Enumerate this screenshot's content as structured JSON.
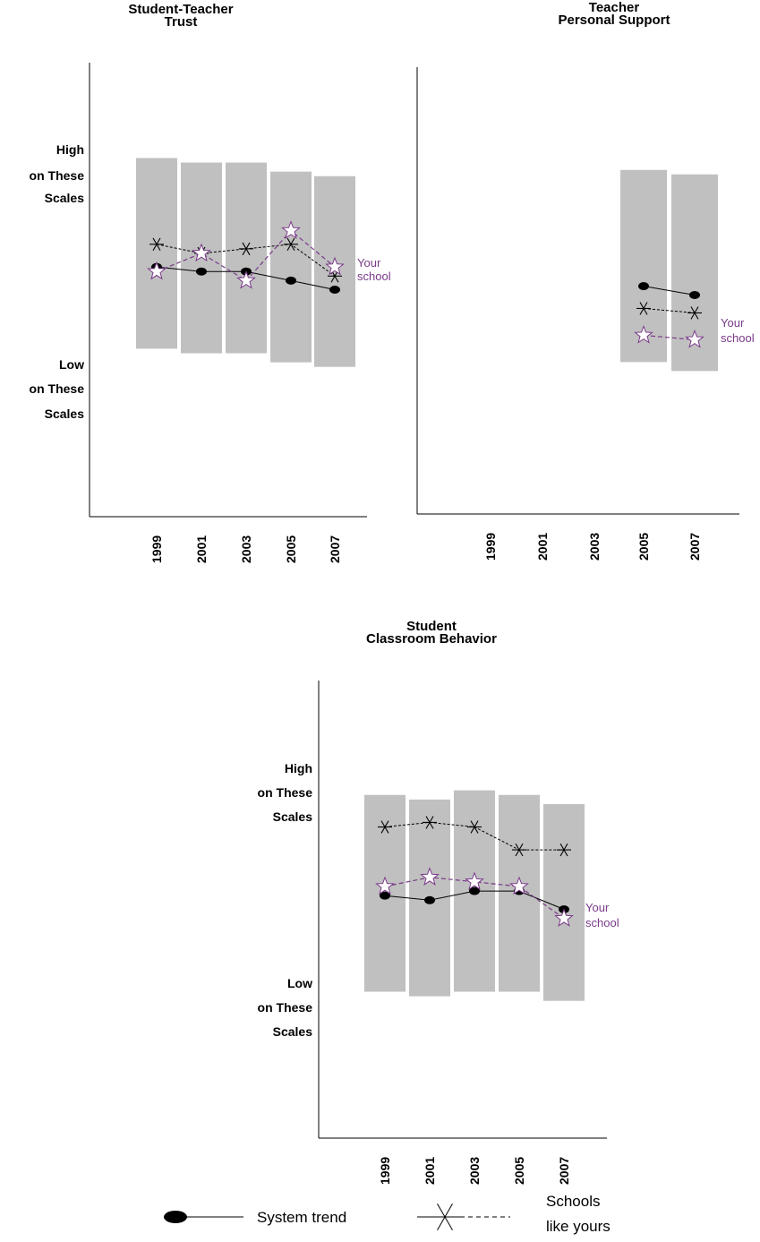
{
  "colors": {
    "band": "#c0c0c0",
    "system": "#000000",
    "similar": "#000000",
    "your_school": "#7a3a8a"
  },
  "chart_data": [
    {
      "type": "line",
      "title": [
        "Student-Teacher",
        "Trust"
      ],
      "ylabel_high": [
        "High",
        "on These",
        "Scales"
      ],
      "ylabel_low": [
        "Low",
        "on These",
        "Scales"
      ],
      "x": [
        "1999",
        "2001",
        "2003",
        "2005",
        "2007"
      ],
      "ylim": [
        0,
        1
      ],
      "bands": [
        [
          0.37,
          0.79
        ],
        [
          0.36,
          0.78
        ],
        [
          0.36,
          0.78
        ],
        [
          0.34,
          0.76
        ],
        [
          0.33,
          0.75
        ]
      ],
      "series": [
        {
          "key": "system",
          "values": [
            0.55,
            0.54,
            0.54,
            0.52,
            0.5
          ]
        },
        {
          "key": "similar",
          "values": [
            0.6,
            0.58,
            0.59,
            0.6,
            0.53
          ]
        },
        {
          "key": "your_school",
          "values": [
            0.54,
            0.58,
            0.52,
            0.63,
            0.55
          ]
        }
      ],
      "end_label": [
        "Your",
        "school"
      ]
    },
    {
      "type": "line",
      "title": [
        "Teacher",
        "Personal Support"
      ],
      "ylabel_high": [],
      "ylabel_low": [],
      "x": [
        "1999",
        "2001",
        "2003",
        "2005",
        "2007"
      ],
      "ylim": [
        0,
        1
      ],
      "bands": [
        null,
        null,
        null,
        [
          0.34,
          0.77
        ],
        [
          0.32,
          0.76
        ]
      ],
      "series": [
        {
          "key": "system",
          "values": [
            null,
            null,
            null,
            0.51,
            0.49
          ]
        },
        {
          "key": "similar",
          "values": [
            null,
            null,
            null,
            0.46,
            0.45
          ]
        },
        {
          "key": "your_school",
          "values": [
            null,
            null,
            null,
            0.4,
            0.39
          ]
        }
      ],
      "end_label": [
        "Your",
        "school"
      ]
    },
    {
      "type": "line",
      "title": [
        "Student",
        "Classroom Behavior"
      ],
      "ylabel_high": [
        "High",
        "on These",
        "Scales"
      ],
      "ylabel_low": [
        "Low",
        "on These",
        "Scales"
      ],
      "x": [
        "1999",
        "2001",
        "2003",
        "2005",
        "2007"
      ],
      "ylim": [
        0,
        1
      ],
      "bands": [
        [
          0.32,
          0.75
        ],
        [
          0.31,
          0.74
        ],
        [
          0.32,
          0.76
        ],
        [
          0.32,
          0.75
        ],
        [
          0.3,
          0.73
        ]
      ],
      "series": [
        {
          "key": "system",
          "values": [
            0.53,
            0.52,
            0.54,
            0.54,
            0.5
          ]
        },
        {
          "key": "similar",
          "values": [
            0.68,
            0.69,
            0.68,
            0.63,
            0.63
          ]
        },
        {
          "key": "your_school",
          "values": [
            0.55,
            0.57,
            0.56,
            0.55,
            0.48
          ]
        }
      ],
      "end_label": [
        "Your",
        "school"
      ]
    }
  ],
  "legend": {
    "system_label": "System trend",
    "similar_label": [
      "Schools",
      "like yours"
    ]
  }
}
